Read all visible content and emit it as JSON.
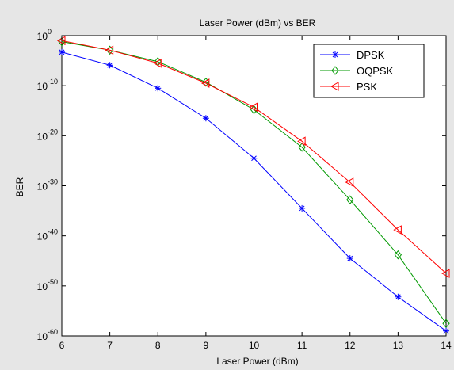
{
  "chart_data": {
    "type": "line",
    "title": "Laser Power (dBm) vs BER",
    "xlabel": "Laser Power (dBm)",
    "ylabel": "BER",
    "x": [
      6,
      7,
      8,
      9,
      10,
      11,
      12,
      13,
      14
    ],
    "xlim": [
      6,
      14
    ],
    "ylim_exponent": [
      -60,
      0
    ],
    "yscale": "log10",
    "ytick_labels": [
      "10",
      "10",
      "10",
      "10",
      "10",
      "10",
      "10"
    ],
    "ytick_exponents": [
      "0",
      "-10",
      "-20",
      "-30",
      "-40",
      "-50",
      "-60"
    ],
    "xtick_labels": [
      "6",
      "7",
      "8",
      "9",
      "10",
      "11",
      "12",
      "13",
      "14"
    ],
    "grid": false,
    "legend_position": "top-right",
    "series": [
      {
        "name": "DPSK",
        "color": "#0000ff",
        "marker": "asterisk",
        "log10_values": [
          -3.3,
          -5.9,
          -10.5,
          -16.5,
          -24.5,
          -34.5,
          -44.5,
          -52.2,
          -59.0
        ]
      },
      {
        "name": "OQPSK",
        "color": "#009900",
        "marker": "diamond",
        "log10_values": [
          -1.2,
          -2.9,
          -5.2,
          -9.3,
          -14.8,
          -22.3,
          -32.8,
          -43.8,
          -57.5
        ]
      },
      {
        "name": "PSK",
        "color": "#ff0000",
        "marker": "triangle-left",
        "log10_values": [
          -1.0,
          -2.9,
          -5.5,
          -9.5,
          -14.3,
          -21.1,
          -29.3,
          -38.8,
          -47.5
        ]
      }
    ]
  }
}
